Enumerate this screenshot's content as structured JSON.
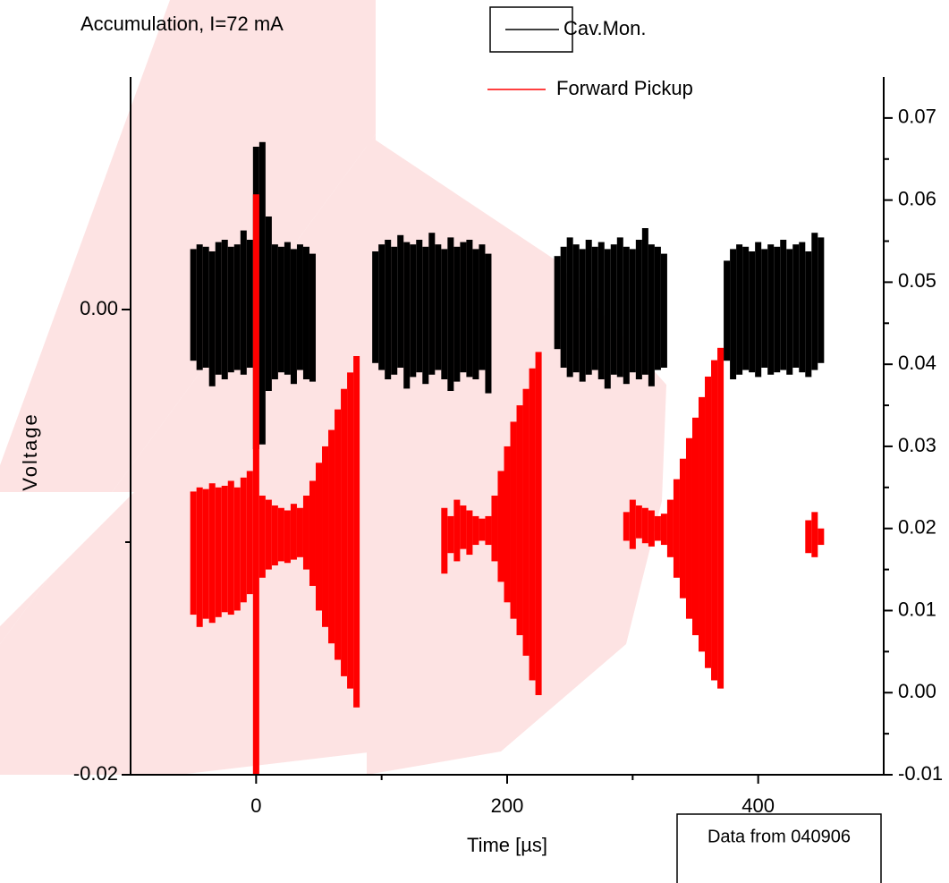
{
  "chart_data": {
    "type": "band",
    "title": "Accumulation, I=72 mA",
    "note": "Data from 040906",
    "x_label": "Time [µs]",
    "y_label": "Voltage",
    "legend": "top",
    "xlim": [
      -100,
      500
    ],
    "xticks": [
      0,
      200,
      400
    ],
    "xminorticks": [
      100,
      300
    ],
    "ylim": [
      -0.02,
      0.01
    ],
    "yticks": [
      -0.02,
      {
        "value": 0,
        "label": "0.00"
      }
    ],
    "yminorticks": [
      -0.01
    ],
    "y2lim": [
      -0.01,
      0.075
    ],
    "y2ticks": [
      -0.01,
      {
        "value": 0,
        "label": "0.00"
      },
      0.01,
      0.02,
      0.03,
      0.04,
      0.05,
      0.06,
      0.07
    ],
    "y2minorticks": [
      -0.005,
      0.005,
      0.015,
      0.025,
      0.035,
      0.045,
      0.055,
      0.065
    ],
    "x": [
      -50,
      -45,
      -40,
      -35,
      -30,
      -25,
      -20,
      -15,
      -10,
      -5,
      0,
      5,
      10,
      15,
      20,
      25,
      30,
      35,
      40,
      45,
      50,
      55,
      60,
      65,
      70,
      75,
      80,
      85,
      90,
      95,
      100,
      105,
      110,
      115,
      120,
      125,
      130,
      135,
      140,
      145,
      150,
      155,
      160,
      165,
      170,
      175,
      180,
      185,
      190,
      195,
      200,
      205,
      210,
      215,
      220,
      225,
      230,
      235,
      240,
      245,
      250,
      255,
      260,
      265,
      270,
      275,
      280,
      285,
      290,
      295,
      300,
      305,
      310,
      315,
      320,
      325,
      330,
      335,
      340,
      345,
      350,
      355,
      360,
      365,
      370,
      375,
      380,
      385,
      390,
      395,
      400,
      405,
      410,
      415,
      420,
      425,
      430,
      435,
      440,
      445,
      450
    ],
    "series": [
      {
        "name": "Cav.Mon.",
        "color": "#000000",
        "axis": "y",
        "high": [
          0.0026,
          0.0028,
          0.0027,
          0.0025,
          0.0029,
          0.003,
          0.0027,
          0.0028,
          0.0034,
          0.003,
          0.007,
          0.0072,
          0.004,
          0.0028,
          0.0027,
          0.0029,
          0.0026,
          0.0028,
          0.0027,
          0.0024,
          null,
          null,
          null,
          null,
          null,
          null,
          null,
          null,
          null,
          0.0025,
          0.0028,
          0.003,
          0.0027,
          0.0032,
          0.0029,
          0.0028,
          0.003,
          0.0027,
          0.0033,
          0.0028,
          0.0026,
          0.0031,
          0.0027,
          0.0029,
          0.003,
          0.0026,
          0.0028,
          0.0024,
          null,
          null,
          null,
          null,
          null,
          null,
          null,
          null,
          null,
          null,
          0.0023,
          0.0027,
          0.0031,
          0.0028,
          0.0026,
          0.003,
          0.0027,
          0.0029,
          0.0026,
          0.0028,
          0.0031,
          0.0027,
          0.0026,
          0.003,
          0.0035,
          0.0028,
          0.0027,
          0.0024,
          null,
          null,
          null,
          null,
          null,
          null,
          null,
          null,
          null,
          0.0021,
          0.0026,
          0.0028,
          0.0027,
          0.0025,
          0.0029,
          0.0026,
          0.0028,
          0.0027,
          0.003,
          0.0026,
          0.0028,
          0.0029,
          0.0025,
          0.0033,
          0.0031
        ],
        "low": [
          -0.0022,
          -0.0026,
          -0.0025,
          -0.0033,
          -0.0028,
          -0.003,
          -0.0027,
          -0.0026,
          -0.0028,
          -0.0025,
          -0.006,
          -0.0058,
          -0.0035,
          -0.003,
          -0.0027,
          -0.0028,
          -0.0032,
          -0.0026,
          -0.003,
          -0.0031,
          null,
          null,
          null,
          null,
          null,
          null,
          null,
          null,
          null,
          -0.0023,
          -0.0026,
          -0.003,
          -0.0028,
          -0.0025,
          -0.0034,
          -0.0029,
          -0.0027,
          -0.0032,
          -0.0028,
          -0.0026,
          -0.003,
          -0.0035,
          -0.0031,
          -0.0027,
          -0.0029,
          -0.003,
          -0.0026,
          -0.0036,
          null,
          null,
          null,
          null,
          null,
          null,
          null,
          null,
          null,
          null,
          -0.0017,
          -0.0025,
          -0.0029,
          -0.0027,
          -0.0031,
          -0.0028,
          -0.0026,
          -0.003,
          -0.0034,
          -0.0028,
          -0.0029,
          -0.0032,
          -0.0027,
          -0.003,
          -0.0028,
          -0.0033,
          -0.0026,
          -0.0025,
          null,
          null,
          null,
          null,
          null,
          null,
          null,
          null,
          null,
          -0.0022,
          -0.003,
          -0.0028,
          -0.0026,
          -0.0027,
          -0.0029,
          -0.0025,
          -0.0028,
          -0.0027,
          -0.0026,
          -0.0028,
          -0.0025,
          -0.0027,
          -0.0029,
          -0.0026,
          -0.0023
        ]
      },
      {
        "name": "Forward Pickup",
        "color": "#ff0000",
        "axis": "y2",
        "high": [
          0.0245,
          0.025,
          0.0248,
          0.0255,
          0.025,
          0.0252,
          0.0258,
          0.025,
          0.0262,
          0.027,
          0.0607,
          0.024,
          0.0235,
          0.0228,
          0.0225,
          0.0222,
          0.023,
          0.0225,
          0.024,
          0.0258,
          0.028,
          0.03,
          0.032,
          0.0345,
          0.037,
          0.039,
          0.041,
          null,
          null,
          null,
          null,
          null,
          null,
          null,
          null,
          null,
          null,
          null,
          null,
          null,
          0.0225,
          0.0215,
          0.0235,
          0.0228,
          0.0222,
          0.0215,
          0.0212,
          0.0215,
          0.024,
          0.027,
          0.03,
          0.033,
          0.035,
          0.037,
          0.0395,
          0.0415,
          null,
          null,
          null,
          null,
          null,
          null,
          null,
          null,
          null,
          null,
          null,
          null,
          null,
          0.022,
          0.0235,
          0.0228,
          0.0225,
          0.0222,
          0.0215,
          0.0218,
          0.0235,
          0.026,
          0.0285,
          0.031,
          0.0335,
          0.036,
          0.0385,
          0.0405,
          0.042,
          null,
          null,
          null,
          null,
          null,
          null,
          null,
          null,
          null,
          null,
          null,
          null,
          null,
          0.021,
          0.022,
          0.02
        ],
        "low": [
          0.0095,
          0.008,
          0.009,
          0.0085,
          0.0092,
          0.0098,
          0.0095,
          0.01,
          0.011,
          0.012,
          -0.01,
          0.014,
          0.015,
          0.0155,
          0.016,
          0.0158,
          0.0162,
          0.0165,
          0.015,
          0.013,
          0.01,
          0.008,
          0.006,
          0.004,
          0.002,
          0.0005,
          -0.0018,
          null,
          null,
          null,
          null,
          null,
          null,
          null,
          null,
          null,
          null,
          null,
          null,
          null,
          0.0145,
          0.017,
          0.016,
          0.0175,
          0.0168,
          0.018,
          0.0185,
          0.018,
          0.016,
          0.0135,
          0.011,
          0.009,
          0.007,
          0.0045,
          0.0015,
          -0.0003,
          null,
          null,
          null,
          null,
          null,
          null,
          null,
          null,
          null,
          null,
          null,
          null,
          null,
          0.0185,
          0.0175,
          0.0188,
          0.0182,
          0.0178,
          0.0185,
          0.018,
          0.0165,
          0.014,
          0.0115,
          0.009,
          0.007,
          0.005,
          0.003,
          0.0015,
          0.0005,
          null,
          null,
          null,
          null,
          null,
          null,
          null,
          null,
          null,
          null,
          null,
          null,
          null,
          0.017,
          0.0165,
          0.018
        ]
      }
    ]
  }
}
